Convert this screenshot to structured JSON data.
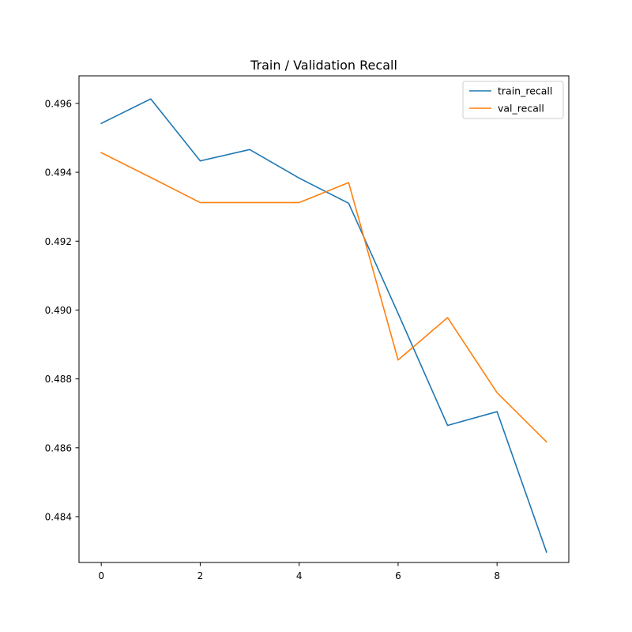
{
  "chart_data": {
    "type": "line",
    "title": "Train / Validation Recall",
    "xlabel": "",
    "ylabel": "",
    "x": [
      0,
      1,
      2,
      3,
      4,
      5,
      6,
      7,
      8,
      9
    ],
    "xlim": [
      -0.45,
      9.45
    ],
    "ylim": [
      0.48267,
      0.4968
    ],
    "x_ticks": [
      0,
      2,
      4,
      6,
      8
    ],
    "y_ticks": [
      0.484,
      0.486,
      0.488,
      0.49,
      0.492,
      0.494,
      0.496
    ],
    "x_tick_labels": [
      "0",
      "2",
      "4",
      "6",
      "8"
    ],
    "y_tick_labels": [
      "0.484",
      "0.486",
      "0.488",
      "0.490",
      "0.492",
      "0.494",
      "0.496"
    ],
    "grid": false,
    "legend_position": "top-right",
    "series": [
      {
        "name": "train_recall",
        "color": "#1f77b4",
        "values": [
          0.49542,
          0.49613,
          0.49433,
          0.49466,
          0.49383,
          0.4931,
          0.4899,
          0.48665,
          0.48705,
          0.48297
        ]
      },
      {
        "name": "val_recall",
        "color": "#ff7f0e",
        "values": [
          0.49457,
          0.49385,
          0.49312,
          0.49312,
          0.49312,
          0.4937,
          0.48855,
          0.48978,
          0.4876,
          0.48617
        ]
      }
    ]
  }
}
